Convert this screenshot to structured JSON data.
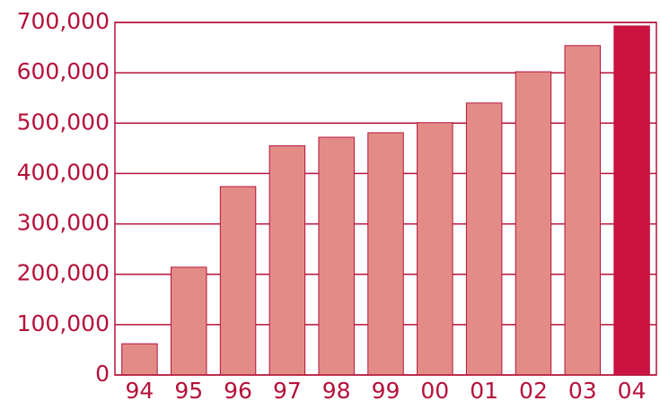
{
  "chart_data": {
    "type": "bar",
    "categories": [
      "94",
      "95",
      "96",
      "97",
      "98",
      "99",
      "00",
      "01",
      "02",
      "03",
      "04"
    ],
    "values": [
      62000,
      214000,
      374000,
      455000,
      472000,
      481000,
      501000,
      540000,
      602000,
      654000,
      693000
    ],
    "colors": [
      "#e38c87",
      "#e38c87",
      "#e38c87",
      "#e38c87",
      "#e38c87",
      "#e38c87",
      "#e38c87",
      "#e38c87",
      "#e38c87",
      "#e38c87",
      "#cc1240"
    ],
    "ylim": [
      0,
      700000
    ],
    "yticks": [
      0,
      {
        "value": 100000,
        "label": "100,000"
      },
      {
        "value": 200000,
        "label": "200,000"
      },
      {
        "value": 300000,
        "label": "300,000"
      },
      {
        "value": 400000,
        "label": "400,000"
      },
      {
        "value": 500000,
        "label": "500,000"
      },
      {
        "value": 600000,
        "label": "600,000"
      },
      {
        "value": 700000,
        "label": "700,000"
      }
    ],
    "grid": true
  }
}
